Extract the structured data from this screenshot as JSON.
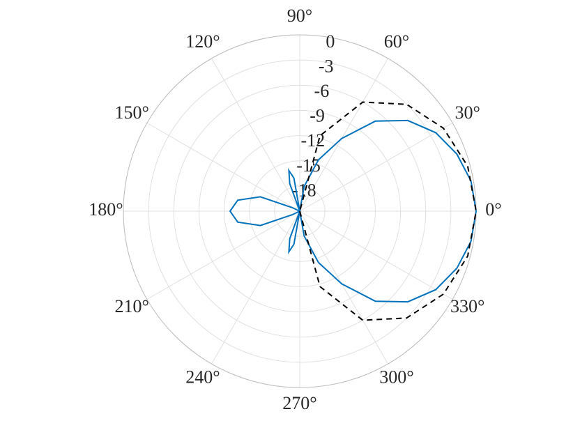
{
  "chart_data": {
    "type": "polar",
    "thetaticks": [
      {
        "value": 0,
        "label": "0°"
      },
      {
        "value": 30,
        "label": "30°"
      },
      {
        "value": 60,
        "label": "60°"
      },
      {
        "value": 90,
        "label": "90°"
      },
      {
        "value": 120,
        "label": "120°"
      },
      {
        "value": 150,
        "label": "150°"
      },
      {
        "value": 180,
        "label": "180°"
      },
      {
        "value": 210,
        "label": "210°"
      },
      {
        "value": 240,
        "label": "240°"
      },
      {
        "value": 270,
        "label": "270°"
      },
      {
        "value": 300,
        "label": "300°"
      },
      {
        "value": 330,
        "label": "330°"
      }
    ],
    "rlim": [
      -21,
      0
    ],
    "rticks": [
      -18,
      -15,
      -12,
      -9,
      -6,
      -3,
      0
    ],
    "grid": true,
    "series": [
      {
        "color": "#0072bd",
        "dash": false,
        "theta": [
          0,
          10,
          20,
          30,
          40,
          50,
          60,
          70,
          80,
          90,
          95,
          100,
          105,
          110,
          115,
          130,
          145,
          155,
          160,
          170,
          180,
          190,
          200,
          205,
          215,
          230,
          245,
          250,
          255,
          260,
          265,
          270,
          280,
          290,
          300,
          310,
          320,
          330,
          340,
          350,
          360
        ],
        "values": [
          0,
          -0.3,
          -1.1,
          -2.3,
          -4.2,
          -7,
          -11,
          -14.5,
          -18,
          -21,
          -21,
          -17,
          -16,
          -17.5,
          -21,
          -21,
          -21,
          -20,
          -16,
          -13.5,
          -12.7,
          -13.5,
          -16,
          -20,
          -21,
          -21,
          -21,
          -17.5,
          -16,
          -17,
          -21,
          -21,
          -18,
          -14.5,
          -11,
          -7,
          -4.2,
          -2.3,
          -1.1,
          -0.3,
          0
        ]
      },
      {
        "color": "#000000",
        "dash": true,
        "theta": [
          -85,
          -75,
          -60,
          -45,
          -30,
          -15,
          0,
          15,
          30,
          45,
          60,
          75,
          85
        ],
        "values": [
          -21,
          -11.7,
          -6,
          -3,
          -1.25,
          -0.3,
          0,
          -0.3,
          -1.25,
          -3,
          -6,
          -11.7,
          -21
        ]
      }
    ]
  }
}
